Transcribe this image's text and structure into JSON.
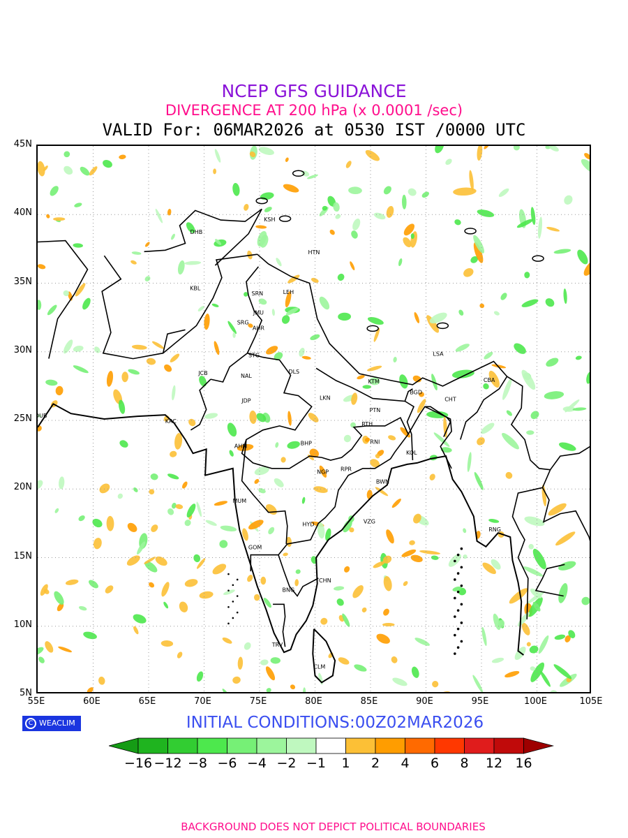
{
  "header": {
    "title": "NCEP GFS GUIDANCE",
    "subtitle": "DIVERGENCE AT 200 hPa (x 0.0001 /sec)",
    "valid": "VALID For: 06MAR2026 at 0530 IST /0000 UTC",
    "title_color": "#8a12d8",
    "subtitle_color": "#ff0e8c"
  },
  "map": {
    "lon_range": [
      55,
      105
    ],
    "lat_range": [
      5,
      45
    ],
    "lat_labels": [
      "45N",
      "40N",
      "35N",
      "30N",
      "25N",
      "20N",
      "15N",
      "10N",
      "5N"
    ],
    "lon_labels": [
      "55E",
      "60E",
      "65E",
      "70E",
      "75E",
      "80E",
      "85E",
      "90E",
      "95E",
      "100E",
      "105E"
    ],
    "grid": "dotted",
    "cities": [
      {
        "name": "KSH",
        "lon": 75.9,
        "lat": 39.5
      },
      {
        "name": "DHB",
        "lon": 69.3,
        "lat": 38.6
      },
      {
        "name": "HTN",
        "lon": 79.9,
        "lat": 37.1
      },
      {
        "name": "KBL",
        "lon": 69.2,
        "lat": 34.5
      },
      {
        "name": "LEH",
        "lon": 77.6,
        "lat": 34.2
      },
      {
        "name": "SRN",
        "lon": 74.8,
        "lat": 34.1
      },
      {
        "name": "JMU",
        "lon": 74.9,
        "lat": 32.7
      },
      {
        "name": "SRG",
        "lon": 73.5,
        "lat": 32.0
      },
      {
        "name": "AHR",
        "lon": 74.9,
        "lat": 31.6
      },
      {
        "name": "LSA",
        "lon": 91.1,
        "lat": 29.7
      },
      {
        "name": "STG",
        "lon": 74.5,
        "lat": 29.6
      },
      {
        "name": "JCB",
        "lon": 69.9,
        "lat": 28.3
      },
      {
        "name": "DLS",
        "lon": 78.1,
        "lat": 28.4
      },
      {
        "name": "NAL",
        "lon": 73.8,
        "lat": 28.1
      },
      {
        "name": "KTM",
        "lon": 85.3,
        "lat": 27.7
      },
      {
        "name": "CBA",
        "lon": 95.7,
        "lat": 27.8
      },
      {
        "name": "BGD",
        "lon": 89.1,
        "lat": 26.9
      },
      {
        "name": "CHT",
        "lon": 92.2,
        "lat": 26.4
      },
      {
        "name": "LKN",
        "lon": 80.9,
        "lat": 26.5
      },
      {
        "name": "JDP",
        "lon": 73.8,
        "lat": 26.3
      },
      {
        "name": "PTN",
        "lon": 85.4,
        "lat": 25.6
      },
      {
        "name": "DUB",
        "lon": 55.3,
        "lat": 25.2
      },
      {
        "name": "KRC",
        "lon": 67.0,
        "lat": 24.8
      },
      {
        "name": "RTH",
        "lon": 84.7,
        "lat": 24.6
      },
      {
        "name": "BHP",
        "lon": 79.2,
        "lat": 23.2
      },
      {
        "name": "AHM",
        "lon": 73.3,
        "lat": 23.0
      },
      {
        "name": "RNI",
        "lon": 85.4,
        "lat": 23.3
      },
      {
        "name": "KOL",
        "lon": 88.7,
        "lat": 22.5
      },
      {
        "name": "NGP",
        "lon": 80.7,
        "lat": 21.1
      },
      {
        "name": "RPR",
        "lon": 82.8,
        "lat": 21.3
      },
      {
        "name": "BWN",
        "lon": 86.1,
        "lat": 20.4
      },
      {
        "name": "MUM",
        "lon": 73.2,
        "lat": 19.0
      },
      {
        "name": "HYD",
        "lon": 79.4,
        "lat": 17.3
      },
      {
        "name": "VZG",
        "lon": 84.9,
        "lat": 17.5
      },
      {
        "name": "RNG",
        "lon": 96.2,
        "lat": 16.9
      },
      {
        "name": "GOM",
        "lon": 74.6,
        "lat": 15.6
      },
      {
        "name": "CHN",
        "lon": 80.9,
        "lat": 13.2
      },
      {
        "name": "BNG",
        "lon": 77.6,
        "lat": 12.5
      },
      {
        "name": "TRV",
        "lon": 76.6,
        "lat": 8.5
      },
      {
        "name": "CLM",
        "lon": 80.4,
        "lat": 6.9
      }
    ]
  },
  "logo": {
    "text": "WEACLIM",
    "symbol": "C"
  },
  "initial_conditions": "INITIAL CONDITIONS:00Z02MAR2026",
  "colorbar": {
    "labels": [
      "−16",
      "−12",
      "−8",
      "−6",
      "−4",
      "−2",
      "−1",
      "1",
      "2",
      "4",
      "6",
      "8",
      "12",
      "16"
    ],
    "colors": [
      "#159b15",
      "#1fb41f",
      "#32cd32",
      "#4de84d",
      "#76f076",
      "#9cf59c",
      "#bff8bf",
      "#ffffff",
      "#fcc036",
      "#ff9d00",
      "#ff6a00",
      "#ff3800",
      "#e01c1c",
      "#c00a0a",
      "#9e0000"
    ]
  },
  "footer": "BACKGROUND DOES NOT DEPICT POLITICAL BOUNDARIES"
}
